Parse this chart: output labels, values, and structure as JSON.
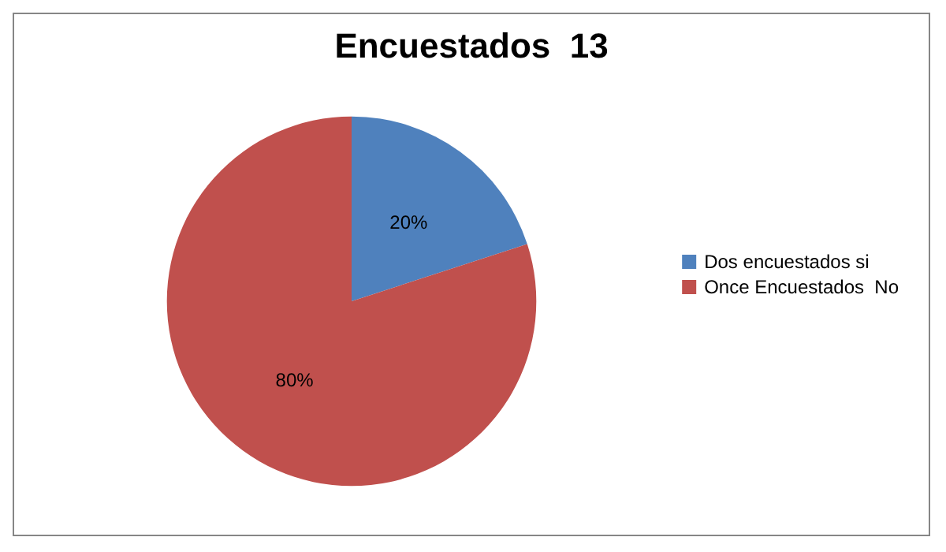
{
  "chart_data": {
    "type": "pie",
    "title": "Encuestados  13",
    "categories": [
      "Dos encuestados si",
      "Once Encuestados  No"
    ],
    "values": [
      20,
      80
    ],
    "colors": [
      "#4f81bd",
      "#c0504d"
    ],
    "value_labels": [
      "20%",
      "80%"
    ],
    "legend": "right"
  }
}
